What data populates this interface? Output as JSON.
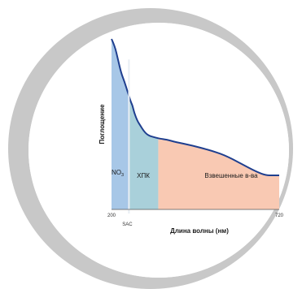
{
  "chart_data": {
    "type": "area",
    "title": "",
    "xlabel": "Длина волны (нм)",
    "ylabel": "Поглощение",
    "x_range": [
      200,
      720
    ],
    "x_tick_labels": [
      "200",
      "720"
    ],
    "marker_label": "SAC",
    "marker_x": 254,
    "grid": false,
    "curve": {
      "x": [
        200,
        210,
        220,
        230,
        240,
        250,
        260,
        265,
        270,
        280,
        290,
        300,
        310,
        320,
        330,
        340,
        350,
        370,
        400,
        450,
        500,
        550,
        600,
        650,
        680,
        700,
        720
      ],
      "y": [
        100,
        96,
        88,
        80,
        75,
        69,
        63,
        61,
        57,
        52,
        49,
        46,
        44,
        43,
        42.5,
        42,
        41.5,
        41,
        39.5,
        37.5,
        35,
        32,
        27,
        22,
        20,
        20,
        20
      ]
    },
    "regions": [
      {
        "name": "NO3",
        "label_main": "NO",
        "label_sub": "3",
        "x_from": 200,
        "x_to": 254,
        "color": "#a7c7e7"
      },
      {
        "name": "ХПК",
        "label_main": "ХПК",
        "label_sub": "",
        "x_from": 254,
        "x_to": 345,
        "color": "#a9d0da"
      },
      {
        "name": "Взвешенные в-ва",
        "label_main": "Взвешенные в-ва",
        "label_sub": "",
        "x_from": 345,
        "x_to": 720,
        "color": "#f9c9b3"
      }
    ],
    "colors": {
      "curve": "#1f3f8f",
      "baseline": "#555555",
      "marker_line": "#e8eef4",
      "ring": "#c8c8c8"
    }
  }
}
